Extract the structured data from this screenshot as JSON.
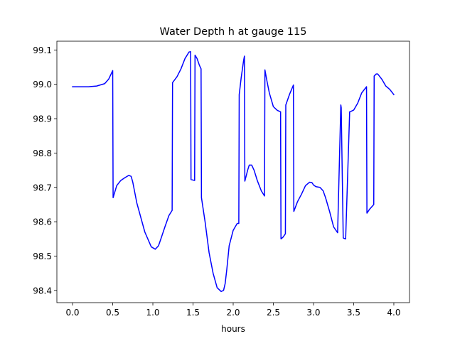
{
  "chart_data": {
    "type": "line",
    "title": "Water Depth h at gauge 115",
    "xlabel": "hours",
    "ylabel": "",
    "xlim": [
      -0.195,
      4.195
    ],
    "ylim": [
      98.3645,
      99.1255
    ],
    "xticks": [
      0.0,
      0.5,
      1.0,
      1.5,
      2.0,
      2.5,
      3.0,
      3.5,
      4.0
    ],
    "xtick_labels": [
      "0.0",
      "0.5",
      "1.0",
      "1.5",
      "2.0",
      "2.5",
      "3.0",
      "3.5",
      "4.0"
    ],
    "yticks": [
      98.4,
      98.5,
      98.6,
      98.7,
      98.8,
      98.9,
      99.0,
      99.1
    ],
    "ytick_labels": [
      "98.4",
      "98.5",
      "98.6",
      "98.7",
      "98.8",
      "98.9",
      "99.0",
      "99.1"
    ],
    "grid": false,
    "legend": "none",
    "series": [
      {
        "color": "#0000ff",
        "x": [
          0.0,
          0.1,
          0.2,
          0.3,
          0.4,
          0.45,
          0.48,
          0.5,
          0.505,
          0.55,
          0.6,
          0.65,
          0.7,
          0.73,
          0.75,
          0.8,
          0.9,
          0.98,
          1.03,
          1.07,
          1.1,
          1.15,
          1.2,
          1.24,
          1.245,
          1.3,
          1.35,
          1.4,
          1.45,
          1.47,
          1.475,
          1.52,
          1.525,
          1.55,
          1.58,
          1.6,
          1.605,
          1.65,
          1.7,
          1.75,
          1.8,
          1.85,
          1.88,
          1.9,
          1.92,
          1.95,
          2.0,
          2.05,
          2.07,
          2.075,
          2.1,
          2.13,
          2.14,
          2.145,
          2.18,
          2.2,
          2.23,
          2.26,
          2.3,
          2.35,
          2.39,
          2.395,
          2.42,
          2.45,
          2.5,
          2.55,
          2.59,
          2.595,
          2.62,
          2.65,
          2.655,
          2.7,
          2.75,
          2.755,
          2.8,
          2.85,
          2.9,
          2.95,
          2.98,
          3.0,
          3.03,
          3.08,
          3.12,
          3.15,
          3.2,
          3.25,
          3.3,
          3.34,
          3.345,
          3.37,
          3.375,
          3.4,
          3.45,
          3.455,
          3.5,
          3.55,
          3.6,
          3.66,
          3.665,
          3.7,
          3.75,
          3.755,
          3.78,
          3.8,
          3.85,
          3.9,
          3.95,
          4.0
        ],
        "y": [
          98.993,
          98.993,
          98.993,
          98.995,
          99.002,
          99.015,
          99.03,
          99.04,
          98.67,
          98.705,
          98.72,
          98.728,
          98.735,
          98.732,
          98.715,
          98.655,
          98.57,
          98.527,
          98.52,
          98.53,
          98.55,
          98.585,
          98.618,
          98.633,
          99.005,
          99.022,
          99.045,
          99.075,
          99.094,
          99.095,
          98.723,
          98.72,
          99.085,
          99.075,
          99.055,
          99.045,
          98.67,
          98.6,
          98.51,
          98.45,
          98.408,
          98.397,
          98.4,
          98.42,
          98.46,
          98.53,
          98.575,
          98.595,
          98.595,
          98.97,
          99.02,
          99.07,
          99.082,
          98.718,
          98.75,
          98.765,
          98.765,
          98.75,
          98.72,
          98.69,
          98.675,
          99.042,
          99.01,
          98.975,
          98.935,
          98.924,
          98.92,
          98.55,
          98.555,
          98.565,
          98.94,
          98.97,
          98.998,
          98.63,
          98.658,
          98.68,
          98.705,
          98.715,
          98.714,
          98.707,
          98.702,
          98.7,
          98.69,
          98.67,
          98.63,
          98.585,
          98.568,
          98.94,
          98.932,
          98.553,
          98.552,
          98.55,
          98.92,
          98.92,
          98.925,
          98.945,
          98.975,
          98.993,
          98.625,
          98.637,
          98.65,
          99.024,
          99.03,
          99.03,
          99.015,
          98.995,
          98.985,
          98.97
        ]
      }
    ]
  }
}
